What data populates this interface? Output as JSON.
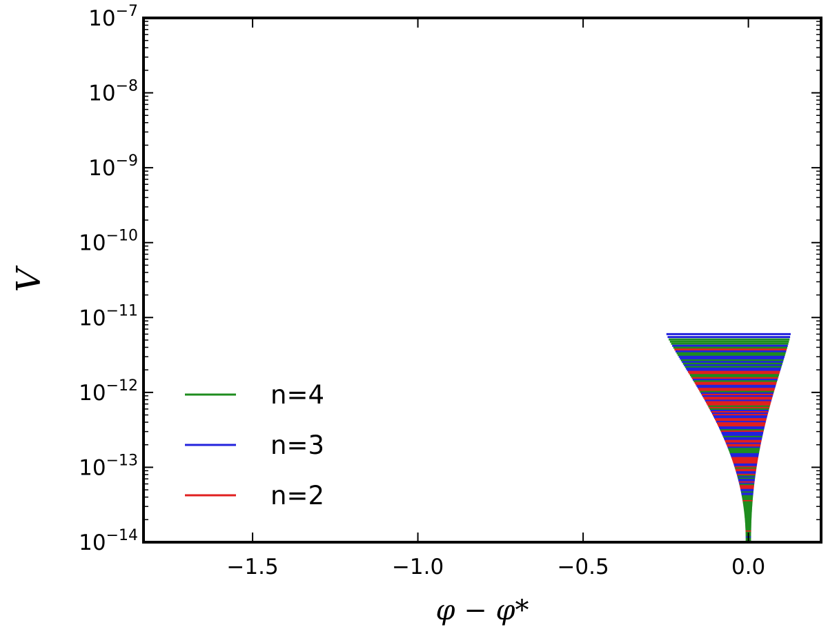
{
  "chart_data": {
    "type": "line",
    "title": "",
    "xlabel": "φ − φ*",
    "ylabel": "V",
    "xlim": [
      -1.83,
      0.22
    ],
    "ylim": [
      1e-14,
      1e-07
    ],
    "yscale": "log",
    "grid": false,
    "legend_position": "lower-left",
    "x_ticks": [
      {
        "value": -1.5,
        "label": "−1.5"
      },
      {
        "value": -1.0,
        "label": "−1.0"
      },
      {
        "value": -0.5,
        "label": "−0.5"
      },
      {
        "value": 0.0,
        "label": "0.0"
      }
    ],
    "y_ticks": [
      {
        "value": 1e-07,
        "base": "10",
        "exp": "−7"
      },
      {
        "value": 1e-08,
        "base": "10",
        "exp": "−8"
      },
      {
        "value": 1e-09,
        "base": "10",
        "exp": "−9"
      },
      {
        "value": 1e-10,
        "base": "10",
        "exp": "−10"
      },
      {
        "value": 1e-11,
        "base": "10",
        "exp": "−11"
      },
      {
        "value": 1e-12,
        "base": "10",
        "exp": "−12"
      },
      {
        "value": 1e-13,
        "base": "10",
        "exp": "−13"
      },
      {
        "value": 1e-14,
        "base": "10",
        "exp": "−14"
      }
    ],
    "series": [
      {
        "name": "n=4",
        "color": "#1e8c1e"
      },
      {
        "name": "n=3",
        "color": "#2222dd"
      },
      {
        "name": "n=2",
        "color": "#e01f1f"
      }
    ],
    "shape": {
      "note": "horizontal segments of V(φ) stacked along V; half-width in φ−φ* shrinks toward low V",
      "top_V": 6e-12,
      "bottom_V": 1e-14,
      "top_x_range": [
        -0.24,
        0.12
      ],
      "center_x": 0.0
    }
  }
}
